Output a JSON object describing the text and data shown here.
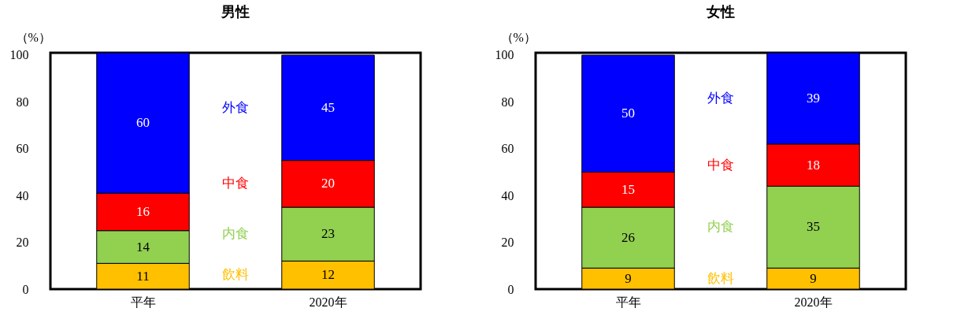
{
  "chart_data": [
    {
      "type": "bar",
      "title": "男性",
      "ylabel": "（%）",
      "categories": [
        "平年",
        "2020年"
      ],
      "stacked": true,
      "data_labels": true,
      "legend": false,
      "grid": false,
      "ylim": [
        0,
        101
      ],
      "yticks": [
        0,
        20,
        40,
        60,
        80,
        100
      ],
      "series": [
        {
          "name": "飲料",
          "color": "#ffc000",
          "values": [
            11,
            12
          ]
        },
        {
          "name": "内食",
          "color": "#92d050",
          "values": [
            14,
            23
          ]
        },
        {
          "name": "中食",
          "color": "#ff0000",
          "values": [
            16,
            20
          ]
        },
        {
          "name": "外食",
          "color": "#0000ff",
          "values": [
            60,
            45
          ]
        }
      ]
    },
    {
      "type": "bar",
      "title": "女性",
      "ylabel": "（%）",
      "categories": [
        "平年",
        "2020年"
      ],
      "stacked": true,
      "data_labels": true,
      "legend": false,
      "grid": false,
      "ylim": [
        0,
        101
      ],
      "yticks": [
        0,
        20,
        40,
        60,
        80,
        100
      ],
      "series": [
        {
          "name": "飲料",
          "color": "#ffc000",
          "values": [
            9,
            9
          ]
        },
        {
          "name": "内食",
          "color": "#92d050",
          "values": [
            26,
            35
          ]
        },
        {
          "name": "中食",
          "color": "#ff0000",
          "values": [
            15,
            18
          ]
        },
        {
          "name": "外食",
          "color": "#0000ff",
          "values": [
            50,
            39
          ]
        }
      ]
    }
  ]
}
